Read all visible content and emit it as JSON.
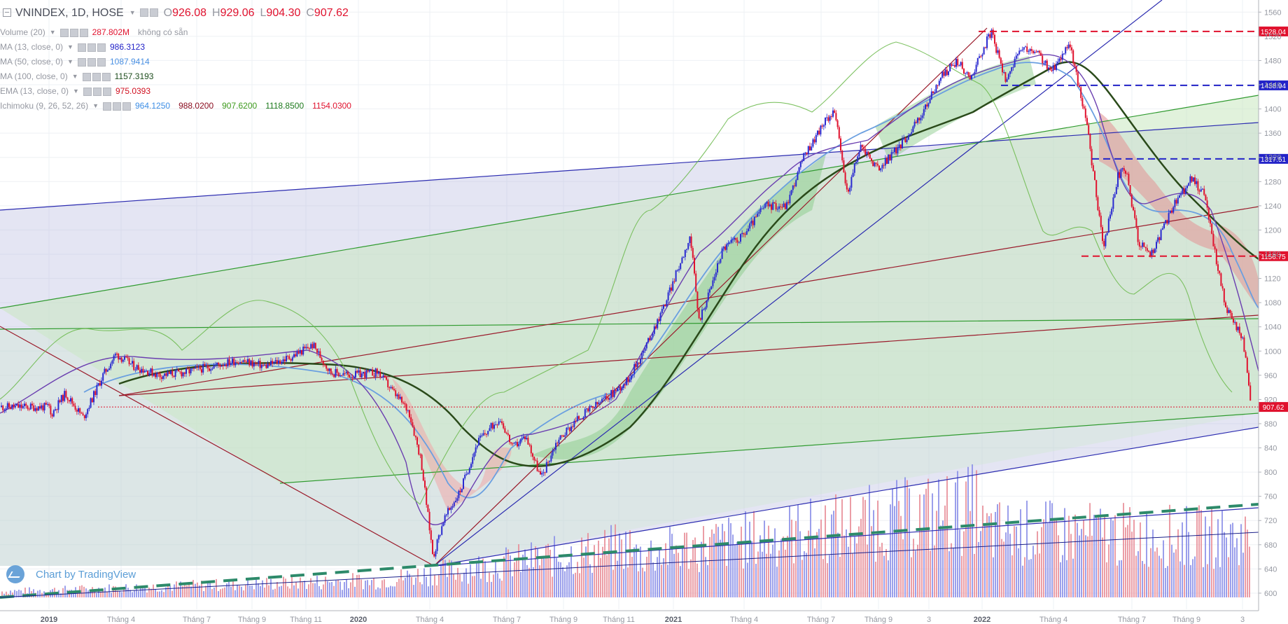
{
  "header": {
    "symbol": "VNINDEX, 1D, HOSE",
    "open_label": "O",
    "open": "926.08",
    "high_label": "H",
    "high": "929.06",
    "low_label": "L",
    "low": "904.30",
    "close_label": "C",
    "close": "907.62"
  },
  "indicators": [
    {
      "name": "Volume (20)",
      "values": [
        "287.802M",
        "không có sẵn"
      ],
      "colors": [
        "#e0122e",
        "#9598a1"
      ]
    },
    {
      "name": "MA (13, close, 0)",
      "values": [
        "986.3123"
      ],
      "colors": [
        "#2323c8"
      ]
    },
    {
      "name": "MA (50, close, 0)",
      "values": [
        "1087.9414"
      ],
      "colors": [
        "#4a90e2"
      ]
    },
    {
      "name": "MA (100, close, 0)",
      "values": [
        "1157.3193"
      ],
      "colors": [
        "#1d4d1d"
      ]
    },
    {
      "name": "EMA (13, close, 0)",
      "values": [
        "975.0393"
      ],
      "colors": [
        "#d01020"
      ]
    },
    {
      "name": "Ichimoku (9, 26, 52, 26)",
      "values": [
        "964.1250",
        "988.0200",
        "907.6200",
        "1118.8500",
        "1154.0300"
      ],
      "colors": [
        "#3d8ee5",
        "#8b0d20",
        "#3d9a1d",
        "#1d7a1d",
        "#e0122e"
      ]
    }
  ],
  "watermark": "Chart by TradingView",
  "chart_data": {
    "type": "candlestick",
    "x_axis_labels": [
      "2019",
      "Tháng 4",
      "Tháng 7",
      "Tháng 9",
      "Tháng 11",
      "2020",
      "Tháng 4",
      "Tháng 7",
      "Tháng 9",
      "Tháng 11",
      "2021",
      "Tháng 4",
      "Tháng 7",
      "Tháng 9",
      "3",
      "2022",
      "Tháng 4",
      "Tháng 7",
      "Tháng 9",
      "3"
    ],
    "bold_x_labels": [
      "2019",
      "2020",
      "2021",
      "2022"
    ],
    "y_axis_ticks": [
      600,
      640,
      680,
      720,
      760,
      800,
      840,
      880,
      920,
      960,
      1000,
      1040,
      1080,
      1120,
      1160,
      1200,
      1240,
      1280,
      1320,
      1360,
      1400,
      1440,
      1480,
      1520,
      1560
    ],
    "ylim": [
      593,
      1580
    ],
    "grid": true,
    "price_levels": [
      {
        "label": "1528.04",
        "value": 1528.04,
        "color": "#e0122e",
        "line": "#e0122e"
      },
      {
        "label": "1438.94",
        "value": 1438.94,
        "color": "#2323c8",
        "line": "#2323c8"
      },
      {
        "label": "1317.51",
        "value": 1317.51,
        "color": "#2323c8",
        "line": "#2323c8"
      },
      {
        "label": "1156.75",
        "value": 1156.75,
        "color": "#e0122e",
        "line": "#e0122e"
      },
      {
        "label": "907.62",
        "value": 907.62,
        "color": "#e0122e",
        "line": "#e0122e"
      }
    ],
    "close_path": [
      [
        "2019-01-02",
        892
      ],
      [
        "2019-01-20",
        930
      ],
      [
        "2019-02-10",
        890
      ],
      [
        "2019-03-05",
        960
      ],
      [
        "2019-03-20",
        995
      ],
      [
        "2019-04-10",
        975
      ],
      [
        "2019-05-10",
        960
      ],
      [
        "2019-06-10",
        965
      ],
      [
        "2019-07-10",
        975
      ],
      [
        "2019-08-10",
        985
      ],
      [
        "2019-09-10",
        975
      ],
      [
        "2019-10-10",
        990
      ],
      [
        "2019-11-05",
        1010
      ],
      [
        "2019-11-25",
        965
      ],
      [
        "2019-12-20",
        960
      ],
      [
        "2020-01-20",
        965
      ],
      [
        "2020-02-05",
        935
      ],
      [
        "2020-02-25",
        900
      ],
      [
        "2020-03-10",
        820
      ],
      [
        "2020-03-24",
        660
      ],
      [
        "2020-04-05",
        720
      ],
      [
        "2020-04-25",
        770
      ],
      [
        "2020-05-15",
        850
      ],
      [
        "2020-06-10",
        890
      ],
      [
        "2020-06-25",
        840
      ],
      [
        "2020-07-10",
        860
      ],
      [
        "2020-07-28",
        790
      ],
      [
        "2020-08-15",
        850
      ],
      [
        "2020-09-10",
        890
      ],
      [
        "2020-10-10",
        920
      ],
      [
        "2020-11-05",
        950
      ],
      [
        "2020-11-25",
        1000
      ],
      [
        "2020-12-20",
        1080
      ],
      [
        "2021-01-18",
        1190
      ],
      [
        "2021-01-28",
        1050
      ],
      [
        "2021-02-10",
        1100
      ],
      [
        "2021-02-25",
        1170
      ],
      [
        "2021-03-20",
        1190
      ],
      [
        "2021-04-15",
        1240
      ],
      [
        "2021-05-10",
        1240
      ],
      [
        "2021-05-30",
        1320
      ],
      [
        "2021-06-20",
        1370
      ],
      [
        "2021-07-05",
        1400
      ],
      [
        "2021-07-20",
        1260
      ],
      [
        "2021-08-05",
        1340
      ],
      [
        "2021-08-25",
        1300
      ],
      [
        "2021-09-20",
        1340
      ],
      [
        "2021-10-15",
        1390
      ],
      [
        "2021-11-05",
        1450
      ],
      [
        "2021-11-25",
        1480
      ],
      [
        "2021-12-10",
        1450
      ],
      [
        "2022-01-04",
        1528
      ],
      [
        "2022-01-20",
        1450
      ],
      [
        "2022-02-10",
        1500
      ],
      [
        "2022-03-01",
        1490
      ],
      [
        "2022-03-15",
        1460
      ],
      [
        "2022-04-05",
        1510
      ],
      [
        "2022-04-25",
        1380
      ],
      [
        "2022-05-15",
        1170
      ],
      [
        "2022-06-01",
        1290
      ],
      [
        "2022-06-10",
        1300
      ],
      [
        "2022-06-25",
        1180
      ],
      [
        "2022-07-10",
        1160
      ],
      [
        "2022-08-05",
        1240
      ],
      [
        "2022-08-25",
        1285
      ],
      [
        "2022-09-10",
        1260
      ],
      [
        "2022-09-25",
        1140
      ],
      [
        "2022-10-05",
        1070
      ],
      [
        "2022-10-25",
        1020
      ],
      [
        "2022-11-03",
        907.62
      ]
    ]
  }
}
